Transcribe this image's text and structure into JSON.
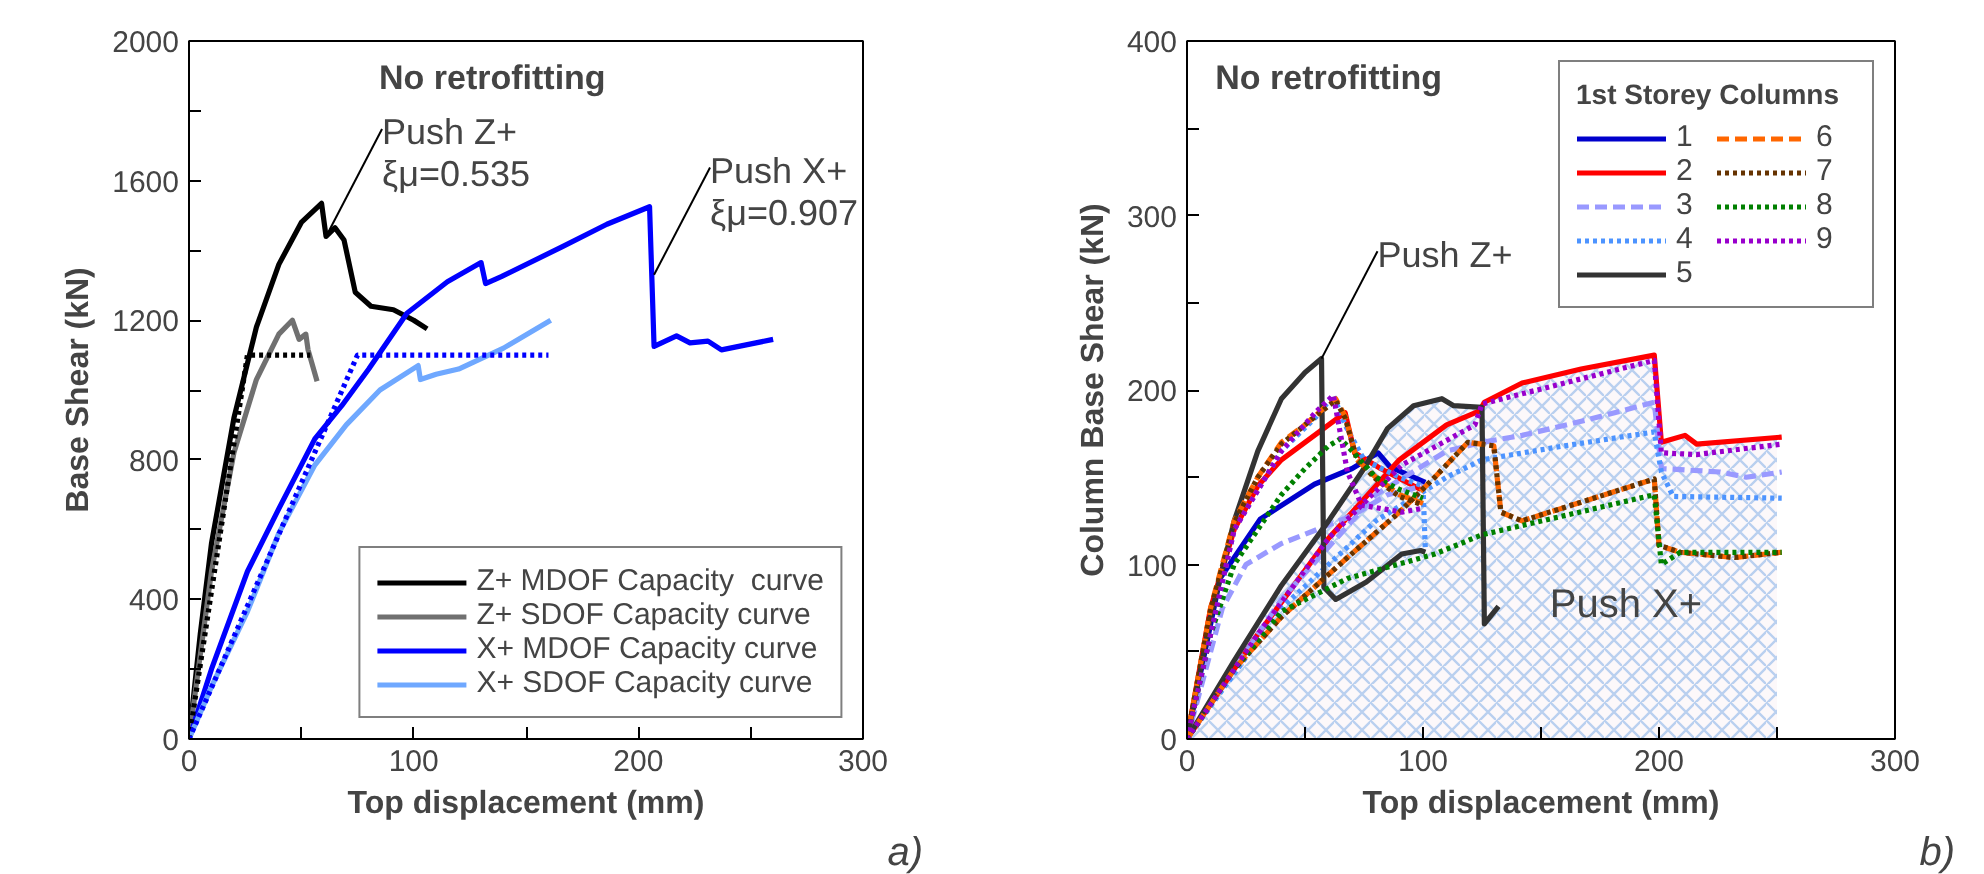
{
  "chart_data": [
    {
      "type": "line",
      "title": "No retrofitting",
      "xlabel": "Top displacement (mm)",
      "ylabel": "Base Shear (kN)",
      "xlim": [
        0,
        300
      ],
      "ylim": [
        0,
        2000
      ],
      "xticks": [
        0,
        {
          "value": 50,
          "label": null
        },
        100,
        {
          "value": 150,
          "label": null
        },
        200,
        {
          "value": 250,
          "label": null
        },
        300
      ],
      "yticks": [
        0,
        {
          "value": 200,
          "label": null
        },
        400,
        {
          "value": 600,
          "label": null
        },
        800,
        {
          "value": 1000,
          "label": null
        },
        1200,
        {
          "value": 1400,
          "label": null
        },
        1600,
        {
          "value": 1800,
          "label": null
        },
        2000
      ],
      "grid": false,
      "legend": "bottom right",
      "annotations": [
        {
          "text": "Push Z+\nξμ=0.535",
          "x": 61,
          "y": 1440
        },
        {
          "text": "Push X+\nξμ=0.907",
          "x": 207,
          "y": 1330
        },
        "a)"
      ],
      "series": [
        {
          "name": "Z+ MDOF Capacity  curve",
          "color": "#000000",
          "line_style": "solid",
          "x": [
            0,
            5,
            10,
            20,
            30,
            40,
            50,
            59,
            61,
            65,
            69,
            74,
            81,
            91,
            100,
            106
          ],
          "values": [
            0,
            300,
            560,
            920,
            1180,
            1360,
            1480,
            1535,
            1440,
            1465,
            1430,
            1280,
            1240,
            1230,
            1200,
            1175
          ]
        },
        {
          "name": "Z+ SDOF Capacity curve",
          "color": "#707070",
          "line_style": "solid",
          "x": [
            0,
            10,
            20,
            30,
            40,
            46,
            49,
            52,
            53,
            57
          ],
          "values": [
            0,
            480,
            820,
            1030,
            1160,
            1200,
            1145,
            1160,
            1115,
            1025
          ]
        },
        {
          "name": "X+ MDOF Capacity curve",
          "color": "#0000ff",
          "line_style": "solid",
          "x": [
            0,
            10,
            26,
            40,
            56,
            68,
            80,
            97,
            115,
            130,
            132,
            139,
            166,
            186,
            205,
            207,
            217,
            223,
            231,
            237,
            260
          ],
          "values": [
            0,
            200,
            480,
            660,
            860,
            955,
            1060,
            1220,
            1310,
            1365,
            1305,
            1325,
            1410,
            1475,
            1525,
            1125,
            1155,
            1135,
            1140,
            1115,
            1145
          ]
        },
        {
          "name": "X+ SDOF Capacity curve",
          "color": "#6fa8ff",
          "line_style": "solid",
          "x": [
            0,
            10,
            26,
            40,
            56,
            70,
            85,
            102,
            103,
            110,
            120,
            140,
            161
          ],
          "values": [
            0,
            150,
            365,
            590,
            785,
            900,
            1000,
            1070,
            1030,
            1045,
            1060,
            1120,
            1200
          ]
        },
        {
          "color": "#000000",
          "line_style": "dotted",
          "x": [
            0,
            26,
            54
          ],
          "values": [
            0,
            1100,
            1100
          ]
        },
        {
          "color": "#0000ff",
          "line_style": "dotted",
          "x": [
            0,
            75,
            160
          ],
          "values": [
            0,
            1100,
            1100
          ]
        }
      ]
    },
    {
      "type": "line",
      "title": "No retrofitting",
      "xlabel": "Top displacement (mm)",
      "ylabel": "Column Base Shear (kN)",
      "xlim": [
        0,
        300
      ],
      "ylim": [
        0,
        400
      ],
      "xticks": [
        0,
        {
          "value": 50,
          "label": null
        },
        100,
        {
          "value": 150,
          "label": null
        },
        200,
        {
          "value": 250,
          "label": null
        },
        300
      ],
      "yticks": [
        0,
        {
          "value": 50,
          "label": null
        },
        100,
        {
          "value": 150,
          "label": null
        },
        200,
        {
          "value": 250,
          "label": null
        },
        300,
        {
          "value": 350,
          "label": null
        },
        400
      ],
      "grid": false,
      "legend": "top right",
      "legend_title": "1st Storey Columns",
      "annotations": [
        {
          "text": "Push Z+",
          "x": 57,
          "y": 218
        },
        "Push X+",
        "b)"
      ],
      "series": [
        {
          "type": "area",
          "color": "#a9c6ec",
          "x": [
            0,
            20,
            40,
            60,
            75,
            85,
            96,
            108,
            113,
            125,
            126,
            142,
            167,
            198,
            201,
            211,
            216,
            250
          ],
          "values": [
            0,
            45,
            88,
            125,
            155,
            178,
            191,
            195,
            191,
            190,
            193,
            204,
            212,
            220,
            170,
            174,
            169,
            173
          ]
        },
        {
          "name": "1",
          "color": "#0000cc",
          "line_style": "solid",
          "x": [
            0,
            14,
            31,
            54,
            70,
            81,
            86,
            101
          ],
          "values": [
            0,
            92,
            126,
            146,
            155,
            164,
            156,
            147
          ]
        },
        {
          "name": "2",
          "color": "#ff0000",
          "line_style": "solid",
          "x": [
            0,
            10,
            20,
            30,
            40,
            50,
            60,
            67,
            71,
            82,
            99
          ],
          "values": [
            0,
            75,
            120,
            145,
            160,
            170,
            180,
            187,
            164,
            155,
            143
          ]
        },
        {
          "color": "#ff0000",
          "line_style": "solid",
          "x": [
            0,
            30,
            60,
            90,
            110,
            124,
            126,
            142,
            167,
            198,
            201,
            211,
            216,
            252
          ],
          "values": [
            0,
            60,
            115,
            160,
            180,
            188,
            193,
            204,
            212,
            220,
            170,
            174,
            169,
            173
          ]
        },
        {
          "name": "3",
          "color": "#9999ff",
          "line_style": "dashed",
          "x": [
            0,
            15,
            25,
            40,
            55,
            70,
            85,
            100
          ],
          "values": [
            0,
            75,
            100,
            112,
            120,
            128,
            140,
            145
          ]
        },
        {
          "color": "#9999ff",
          "line_style": "dashed",
          "x": [
            0,
            40,
            80,
            110,
            125,
            142,
            170,
            198,
            201,
            226,
            237,
            252
          ],
          "values": [
            0,
            80,
            140,
            165,
            170,
            174,
            183,
            193,
            155,
            153,
            150,
            153
          ]
        },
        {
          "name": "4",
          "color": "#4d94ff",
          "line_style": "dotted",
          "x": [
            0,
            20,
            40,
            55,
            62,
            67,
            75,
            90,
            100,
            101
          ],
          "values": [
            0,
            120,
            165,
            185,
            197,
            180,
            160,
            150,
            145,
            108
          ]
        },
        {
          "color": "#4d94ff",
          "line_style": "dotted",
          "x": [
            0,
            40,
            80,
            110,
            125,
            160,
            198,
            201,
            206,
            252
          ],
          "values": [
            0,
            75,
            125,
            150,
            160,
            168,
            176,
            153,
            139,
            138
          ]
        },
        {
          "name": "5",
          "color": "#333333",
          "line_style": "solid",
          "x": [
            0,
            10,
            20,
            30,
            40,
            50,
            57,
            58,
            63,
            76,
            91,
            99,
            101
          ],
          "values": [
            0,
            70,
            125,
            165,
            195,
            210,
            218,
            87,
            80,
            90,
            106,
            108,
            107
          ]
        },
        {
          "color": "#333333",
          "line_style": "solid",
          "x": [
            0,
            20,
            40,
            60,
            75,
            85,
            96,
            108,
            113,
            125,
            126,
            132
          ],
          "values": [
            0,
            45,
            88,
            125,
            155,
            178,
            191,
            195,
            191,
            190,
            66,
            76
          ]
        },
        {
          "name": "6",
          "color": "#ff6600",
          "line_style": "dashed",
          "x": [
            0,
            10,
            20,
            30,
            40,
            50,
            60,
            63,
            67,
            72,
            80,
            90,
            100
          ],
          "values": [
            0,
            75,
            125,
            150,
            170,
            180,
            192,
            195,
            185,
            160,
            150,
            140,
            135
          ]
        },
        {
          "color": "#ff6600",
          "line_style": "dashed",
          "x": [
            0,
            20,
            40,
            68,
            90,
            105,
            119,
            130,
            133,
            142,
            198,
            200,
            209,
            232,
            252
          ],
          "values": [
            0,
            40,
            70,
            104,
            130,
            150,
            170,
            168,
            130,
            125,
            149,
            111,
            107,
            104,
            107
          ]
        },
        {
          "name": "7",
          "color": "#663300",
          "line_style": "dotted",
          "x": [
            0,
            10,
            20,
            30,
            40,
            50,
            60,
            63,
            67,
            72,
            80,
            90,
            100
          ],
          "values": [
            0,
            74,
            124,
            150,
            169,
            180,
            191,
            194,
            184,
            160,
            149,
            139,
            134
          ]
        },
        {
          "color": "#663300",
          "line_style": "dotted",
          "x": [
            0,
            20,
            40,
            68,
            90,
            105,
            119,
            130,
            133,
            142,
            198,
            200,
            209,
            232,
            252
          ],
          "values": [
            0,
            40,
            70,
            104,
            130,
            150,
            170,
            168,
            130,
            125,
            149,
            111,
            107,
            104,
            107
          ]
        },
        {
          "name": "8",
          "color": "#008000",
          "line_style": "dotted",
          "x": [
            0,
            10,
            20,
            30,
            40,
            50,
            60,
            65,
            70,
            80,
            90,
            100
          ],
          "values": [
            0,
            60,
            100,
            120,
            140,
            155,
            168,
            172,
            165,
            150,
            143,
            138
          ]
        },
        {
          "color": "#008000",
          "line_style": "dotted",
          "x": [
            0,
            20,
            40,
            68,
            105,
            125,
            198,
            201,
            209,
            252
          ],
          "values": [
            0,
            40,
            73,
            92,
            106,
            117,
            140,
            100,
            107,
            107
          ]
        },
        {
          "name": "9",
          "color": "#9900cc",
          "line_style": "dotted",
          "x": [
            0,
            20,
            40,
            55,
            62,
            68,
            74,
            91,
            99
          ],
          "values": [
            0,
            120,
            165,
            188,
            197,
            153,
            134,
            130,
            132
          ]
        },
        {
          "color": "#9900cc",
          "line_style": "dotted",
          "x": [
            0,
            30,
            60,
            91,
            122,
            125,
            198,
            201,
            216,
            252
          ],
          "values": [
            0,
            60,
            115,
            157,
            180,
            192,
            217,
            164,
            163,
            169
          ]
        }
      ]
    }
  ]
}
